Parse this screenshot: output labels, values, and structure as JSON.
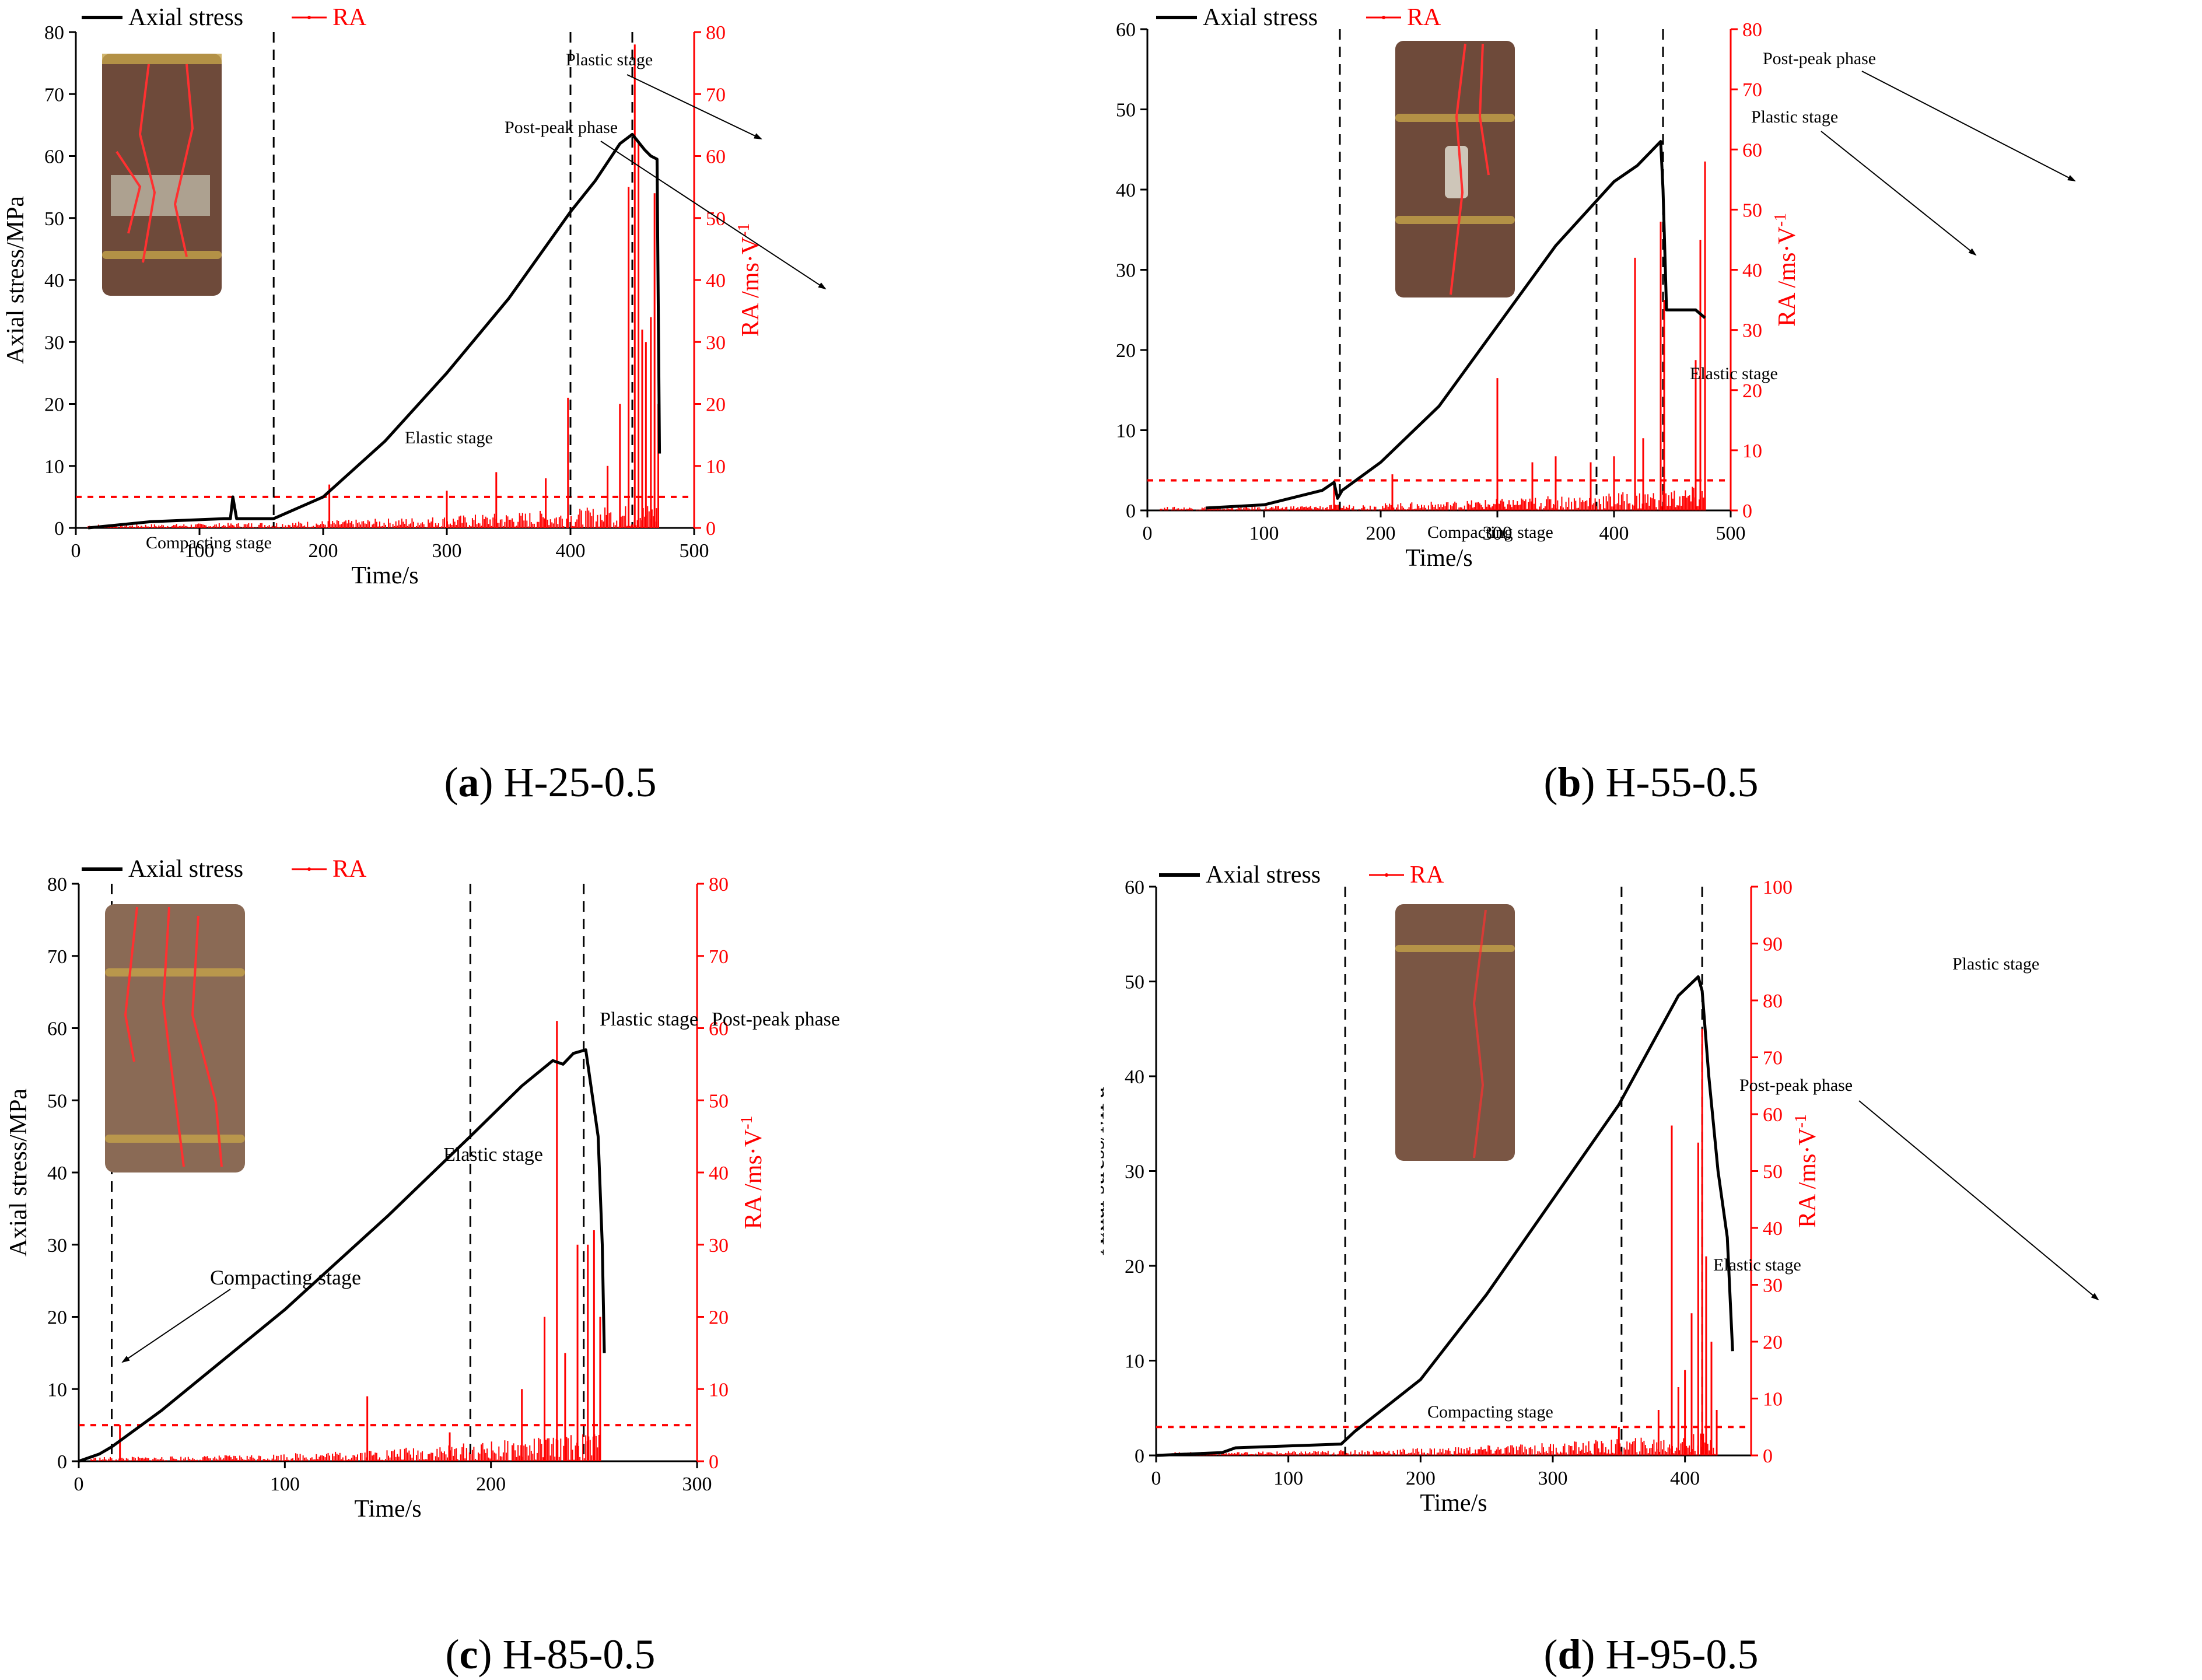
{
  "legend": {
    "stress_label": "Axial stress",
    "ra_label": "RA"
  },
  "axis": {
    "xlabel": "Time/s",
    "ylabel_left": "Axial stress/MPa",
    "ylabel_right": "RA /ms·V",
    "ylabel_right_sup": "-1"
  },
  "colors": {
    "stress": "#000000",
    "ra": "#ff0000",
    "threshold": "#ff0000",
    "stage_line": "#000000"
  },
  "panels": [
    {
      "id": "a",
      "caption_letter": "a",
      "caption_text": "H-25-0.5"
    },
    {
      "id": "b",
      "caption_letter": "b",
      "caption_text": "H-55-0.5"
    },
    {
      "id": "c",
      "caption_letter": "c",
      "caption_text": "H-85-0.5"
    },
    {
      "id": "d",
      "caption_letter": "d",
      "caption_text": "H-95-0.5"
    }
  ],
  "chart_data": [
    {
      "type": "line",
      "xlim": [
        0,
        500
      ],
      "xticks": [
        0,
        100,
        200,
        300,
        400,
        500
      ],
      "ylim_left": [
        0,
        80
      ],
      "yticks_left": [
        0,
        10,
        20,
        30,
        40,
        50,
        60,
        70,
        80
      ],
      "ylim_right": [
        0,
        80
      ],
      "yticks_right": [
        0,
        10,
        20,
        30,
        40,
        50,
        60,
        70,
        80
      ],
      "stage_boundaries": [
        160,
        400,
        450
      ],
      "ra_threshold": 5,
      "series": [
        {
          "name": "Axial stress",
          "axis": "left",
          "x": [
            10,
            60,
            120,
            125,
            127,
            130,
            160,
            200,
            250,
            300,
            350,
            400,
            420,
            440,
            450,
            460,
            465,
            470,
            472
          ],
          "y": [
            0,
            1,
            1.5,
            1.5,
            5,
            1.5,
            1.5,
            5,
            14,
            25,
            37,
            51,
            56,
            62,
            63.5,
            61,
            60,
            59.5,
            12
          ]
        },
        {
          "name": "RA",
          "axis": "right",
          "spikes": [
            [
              205,
              7
            ],
            [
              300,
              6
            ],
            [
              340,
              9
            ],
            [
              380,
              8
            ],
            [
              398,
              21
            ],
            [
              430,
              10
            ],
            [
              440,
              20
            ],
            [
              447,
              55
            ],
            [
              452,
              78
            ],
            [
              455,
              62
            ],
            [
              458,
              32
            ],
            [
              461,
              30
            ],
            [
              465,
              34
            ],
            [
              468,
              54
            ],
            [
              471,
              20
            ]
          ]
        }
      ],
      "annotations": [
        "Compacting stage",
        "Elastic stage",
        "Plastic stage",
        "Post-peak phase"
      ]
    },
    {
      "type": "line",
      "xlim": [
        0,
        500
      ],
      "xticks": [
        0,
        100,
        200,
        300,
        400,
        500
      ],
      "ylim_left": [
        0,
        60
      ],
      "yticks_left": [
        0,
        10,
        20,
        30,
        40,
        50,
        60
      ],
      "ylim_right": [
        0,
        80
      ],
      "yticks_right": [
        0,
        10,
        20,
        30,
        40,
        50,
        60,
        70,
        80
      ],
      "stage_boundaries": [
        165,
        385,
        442
      ],
      "ra_threshold": 5,
      "series": [
        {
          "name": "Axial stress",
          "axis": "left",
          "x": [
            50,
            100,
            150,
            160,
            163,
            167,
            200,
            250,
            300,
            350,
            400,
            420,
            440,
            442,
            445,
            450,
            470,
            478
          ],
          "y": [
            0.3,
            0.7,
            2.5,
            3.5,
            1.5,
            2.5,
            6,
            13,
            23,
            33,
            41,
            43,
            46,
            40,
            25,
            25,
            25,
            24
          ]
        },
        {
          "name": "RA",
          "axis": "right",
          "spikes": [
            [
              160,
              5
            ],
            [
              210,
              6
            ],
            [
              300,
              22
            ],
            [
              330,
              8
            ],
            [
              350,
              9
            ],
            [
              380,
              8
            ],
            [
              400,
              9
            ],
            [
              418,
              42
            ],
            [
              425,
              12
            ],
            [
              440,
              48
            ],
            [
              443,
              35
            ],
            [
              470,
              25
            ],
            [
              474,
              45
            ],
            [
              478,
              58
            ]
          ]
        }
      ],
      "annotations": [
        "Compacting stage",
        "Elastic stage",
        "Plastic stage",
        "Post-peak phase"
      ]
    },
    {
      "type": "line",
      "xlim": [
        0,
        300
      ],
      "xticks": [
        0,
        100,
        200,
        300
      ],
      "ylim_left": [
        0,
        80
      ],
      "yticks_left": [
        0,
        10,
        20,
        30,
        40,
        50,
        60,
        70,
        80
      ],
      "ylim_right": [
        0,
        80
      ],
      "yticks_right": [
        0,
        10,
        20,
        30,
        40,
        50,
        60,
        70,
        80
      ],
      "stage_boundaries": [
        16,
        190,
        245
      ],
      "ra_threshold": 5,
      "series": [
        {
          "name": "Axial stress",
          "axis": "left",
          "x": [
            0,
            10,
            16,
            40,
            100,
            150,
            190,
            215,
            230,
            235,
            240,
            246,
            248,
            252,
            254,
            255
          ],
          "y": [
            0,
            1,
            2,
            7,
            21,
            34,
            45,
            52,
            55.5,
            55,
            56.5,
            57,
            53,
            45,
            30,
            15
          ]
        },
        {
          "name": "RA",
          "axis": "right",
          "spikes": [
            [
              20,
              5
            ],
            [
              140,
              9
            ],
            [
              180,
              4
            ],
            [
              215,
              10
            ],
            [
              226,
              20
            ],
            [
              232,
              61
            ],
            [
              236,
              15
            ],
            [
              242,
              30
            ],
            [
              247,
              30
            ],
            [
              250,
              32
            ],
            [
              253,
              20
            ]
          ]
        }
      ],
      "annotations": [
        "Compacting stage",
        "Elastic stage",
        "Plastic stage",
        "Post-peak phase"
      ]
    },
    {
      "type": "line",
      "xlim": [
        0,
        450
      ],
      "xticks": [
        0,
        100,
        200,
        300,
        400
      ],
      "ylim_left": [
        0,
        60
      ],
      "yticks_left": [
        0,
        10,
        20,
        30,
        40,
        50,
        60
      ],
      "ylim_right": [
        0,
        100
      ],
      "yticks_right": [
        0,
        10,
        20,
        30,
        40,
        50,
        60,
        70,
        80,
        90,
        100
      ],
      "stage_boundaries": [
        143,
        352,
        413
      ],
      "ra_threshold": 5,
      "series": [
        {
          "name": "Axial stress",
          "axis": "left",
          "x": [
            0,
            50,
            60,
            100,
            140,
            150,
            200,
            250,
            300,
            350,
            395,
            410,
            413,
            418,
            425,
            432,
            436
          ],
          "y": [
            0,
            0.3,
            0.8,
            1,
            1.2,
            2.5,
            8,
            17,
            27,
            37,
            48.5,
            50.5,
            49,
            40,
            30,
            23,
            11
          ]
        },
        {
          "name": "RA",
          "axis": "right",
          "spikes": [
            [
              350,
              5
            ],
            [
              380,
              8
            ],
            [
              390,
              58
            ],
            [
              395,
              12
            ],
            [
              400,
              15
            ],
            [
              405,
              25
            ],
            [
              410,
              55
            ],
            [
              413,
              75
            ],
            [
              416,
              35
            ],
            [
              420,
              20
            ],
            [
              424,
              8
            ]
          ]
        }
      ],
      "annotations": [
        "Compacting stage",
        "Elastic stage",
        "Plastic stage",
        "Post-peak phase"
      ]
    }
  ]
}
